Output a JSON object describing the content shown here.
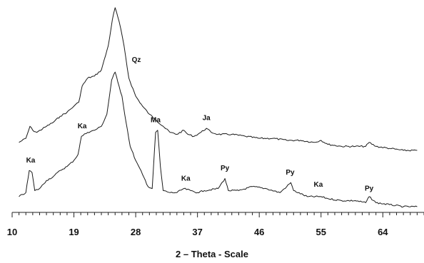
{
  "chart_data": {
    "type": "line",
    "title": "",
    "xlabel": "2 – Theta - Scale",
    "ylabel": "",
    "xlim": [
      10,
      70
    ],
    "ylim": [
      0,
      100
    ],
    "x_ticks": [
      10,
      19,
      28,
      37,
      46,
      55,
      64
    ],
    "grid": false,
    "legend": "none",
    "series": [
      {
        "points": [
          [
            11,
            32
          ],
          [
            12,
            34
          ],
          [
            12.6,
            40
          ],
          [
            13,
            38
          ],
          [
            13.6,
            37
          ],
          [
            15,
            40
          ],
          [
            16,
            42
          ],
          [
            17,
            45
          ],
          [
            18,
            47
          ],
          [
            19,
            50
          ],
          [
            19.7,
            52
          ],
          [
            20.2,
            60
          ],
          [
            21,
            64
          ],
          [
            22,
            65
          ],
          [
            23,
            68
          ],
          [
            24,
            80
          ],
          [
            24.6,
            93
          ],
          [
            25,
            99
          ],
          [
            25.6,
            92
          ],
          [
            26.3,
            80
          ],
          [
            27,
            64
          ],
          [
            28,
            55
          ],
          [
            29,
            50
          ],
          [
            30,
            46
          ],
          [
            31,
            43
          ],
          [
            32,
            40
          ],
          [
            33,
            37
          ],
          [
            34,
            36
          ],
          [
            35,
            38
          ],
          [
            35.6,
            36
          ],
          [
            36.5,
            35
          ],
          [
            37.5,
            37
          ],
          [
            38.3,
            39
          ],
          [
            39,
            37
          ],
          [
            40,
            36
          ],
          [
            42,
            36
          ],
          [
            44,
            35
          ],
          [
            46,
            34
          ],
          [
            48,
            34
          ],
          [
            50,
            33
          ],
          [
            52,
            33
          ],
          [
            54,
            32
          ],
          [
            55,
            33
          ],
          [
            56,
            31
          ],
          [
            58,
            30
          ],
          [
            60,
            30
          ],
          [
            61.5,
            30
          ],
          [
            62,
            32
          ],
          [
            63,
            30
          ],
          [
            65,
            29
          ],
          [
            67,
            28
          ],
          [
            69,
            28
          ]
        ]
      },
      {
        "points": [
          [
            11,
            5
          ],
          [
            12,
            7
          ],
          [
            12.5,
            18
          ],
          [
            12.9,
            17
          ],
          [
            13.3,
            8
          ],
          [
            14,
            9
          ],
          [
            15,
            13
          ],
          [
            16,
            15
          ],
          [
            17,
            18
          ],
          [
            18,
            20
          ],
          [
            19,
            23
          ],
          [
            19.6,
            26
          ],
          [
            20.1,
            35
          ],
          [
            21,
            37
          ],
          [
            22,
            38
          ],
          [
            23,
            40
          ],
          [
            23.8,
            46
          ],
          [
            24.5,
            63
          ],
          [
            25,
            67
          ],
          [
            25.4,
            62
          ],
          [
            26,
            55
          ],
          [
            26.6,
            42
          ],
          [
            27.2,
            30
          ],
          [
            28,
            23
          ],
          [
            29,
            16
          ],
          [
            29.8,
            10
          ],
          [
            30.4,
            9
          ],
          [
            30.9,
            37
          ],
          [
            31.2,
            38
          ],
          [
            31.6,
            20
          ],
          [
            32,
            8
          ],
          [
            33,
            7
          ],
          [
            34,
            7
          ],
          [
            35,
            9
          ],
          [
            36,
            8
          ],
          [
            37,
            7
          ],
          [
            38,
            8
          ],
          [
            40,
            9
          ],
          [
            41,
            14
          ],
          [
            41.5,
            8
          ],
          [
            43,
            8
          ],
          [
            45,
            10
          ],
          [
            47,
            9
          ],
          [
            49,
            7
          ],
          [
            50,
            10
          ],
          [
            50.6,
            12
          ],
          [
            51,
            8
          ],
          [
            53,
            5
          ],
          [
            55,
            5
          ],
          [
            56,
            4
          ],
          [
            58,
            3
          ],
          [
            60,
            3
          ],
          [
            61.5,
            2
          ],
          [
            62,
            5
          ],
          [
            63,
            2
          ],
          [
            65,
            1
          ],
          [
            67,
            0
          ],
          [
            69,
            0
          ]
        ]
      }
    ],
    "annotations": [
      {
        "text": "Qz",
        "x": 28.1,
        "y": 72
      },
      {
        "text": "Ja",
        "x": 38.3,
        "y": 43
      },
      {
        "text": "Ka",
        "x": 20.2,
        "y": 39
      },
      {
        "text": "Ma",
        "x": 30.9,
        "y": 42
      },
      {
        "text": "Ka",
        "x": 12.7,
        "y": 22
      },
      {
        "text": "Ka",
        "x": 35.3,
        "y": 13
      },
      {
        "text": "Py",
        "x": 41,
        "y": 18
      },
      {
        "text": "Py",
        "x": 50.5,
        "y": 16
      },
      {
        "text": "Ka",
        "x": 54.6,
        "y": 10
      },
      {
        "text": "Py",
        "x": 62,
        "y": 8
      }
    ]
  }
}
